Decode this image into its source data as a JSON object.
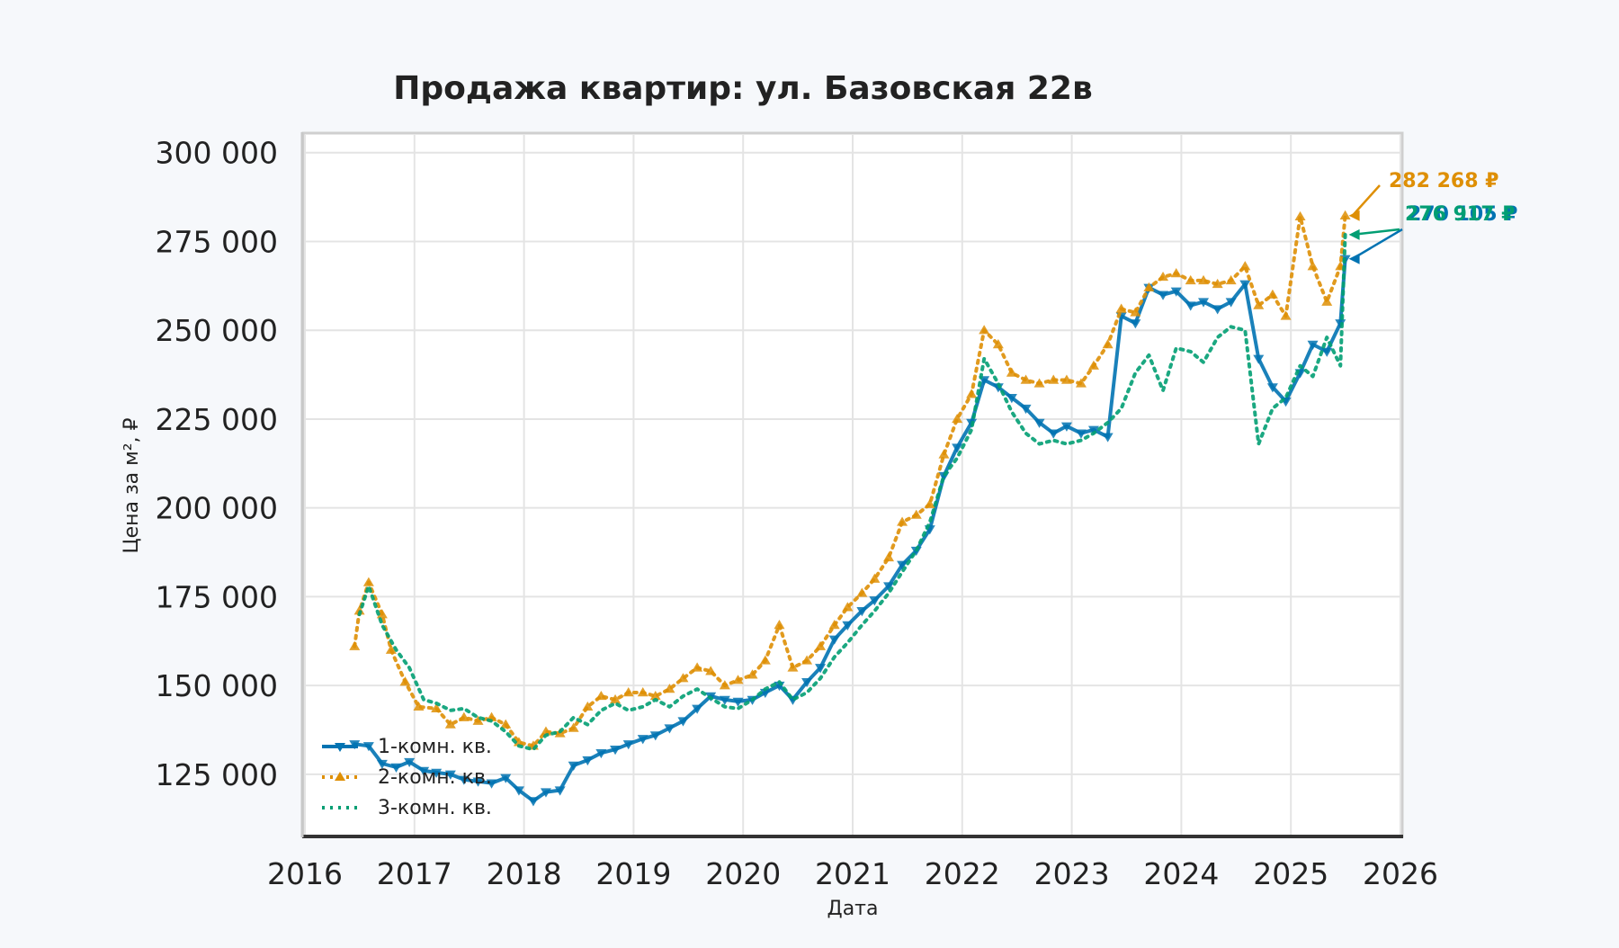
{
  "chart_data": {
    "type": "line",
    "title": "Продажа квартир: ул. Базовская 22в",
    "xlabel": "Дата",
    "ylabel": "Цена за м², ₽",
    "xlim": [
      2016,
      2026
    ],
    "ylim": [
      108000,
      305000
    ],
    "x_ticks": [
      2016,
      2017,
      2018,
      2019,
      2020,
      2021,
      2022,
      2023,
      2024,
      2025,
      2026
    ],
    "x_tick_labels": [
      "2016",
      "2017",
      "2018",
      "2019",
      "2020",
      "2021",
      "2022",
      "2023",
      "2024",
      "2025",
      "2026"
    ],
    "y_ticks": [
      125000,
      150000,
      175000,
      200000,
      225000,
      250000,
      275000,
      300000
    ],
    "y_tick_labels": [
      "125 000",
      "150 000",
      "175 000",
      "200 000",
      "225 000",
      "250 000",
      "275 000",
      "300 000"
    ],
    "grid": true,
    "legend_position": "lower-left",
    "series": [
      {
        "name": "1-комн. кв.",
        "color": "#0173b2",
        "line_style": "solid",
        "marker": "triangle-down",
        "end_label": "270 105 ₽",
        "points": [
          [
            "2016-06-15",
            133500
          ],
          [
            "2016-08-01",
            133000
          ],
          [
            "2016-09-15",
            128000
          ],
          [
            "2016-11-01",
            127000
          ],
          [
            "2016-12-15",
            128500
          ],
          [
            "2017-02-01",
            126000
          ],
          [
            "2017-03-15",
            125500
          ],
          [
            "2017-05-01",
            125000
          ],
          [
            "2017-06-15",
            123500
          ],
          [
            "2017-08-01",
            123000
          ],
          [
            "2017-09-15",
            122500
          ],
          [
            "2017-11-01",
            124000
          ],
          [
            "2017-12-15",
            120500
          ],
          [
            "2018-02-01",
            117500
          ],
          [
            "2018-03-15",
            120000
          ],
          [
            "2018-05-01",
            120500
          ],
          [
            "2018-06-15",
            127500
          ],
          [
            "2018-08-01",
            129000
          ],
          [
            "2018-09-15",
            131000
          ],
          [
            "2018-11-01",
            132000
          ],
          [
            "2018-12-15",
            133500
          ],
          [
            "2019-02-01",
            135000
          ],
          [
            "2019-03-15",
            136000
          ],
          [
            "2019-05-01",
            138000
          ],
          [
            "2019-06-15",
            140000
          ],
          [
            "2019-08-01",
            143500
          ],
          [
            "2019-09-15",
            147000
          ],
          [
            "2019-11-01",
            146000
          ],
          [
            "2019-12-15",
            145500
          ],
          [
            "2020-02-01",
            146000
          ],
          [
            "2020-03-15",
            148000
          ],
          [
            "2020-05-01",
            150000
          ],
          [
            "2020-06-15",
            146000
          ],
          [
            "2020-08-01",
            151000
          ],
          [
            "2020-09-15",
            155000
          ],
          [
            "2020-11-01",
            163000
          ],
          [
            "2020-12-15",
            167000
          ],
          [
            "2021-02-01",
            171000
          ],
          [
            "2021-03-15",
            174000
          ],
          [
            "2021-05-01",
            178000
          ],
          [
            "2021-06-15",
            184000
          ],
          [
            "2021-08-01",
            188000
          ],
          [
            "2021-09-15",
            194000
          ],
          [
            "2021-11-01",
            209000
          ],
          [
            "2021-12-15",
            217000
          ],
          [
            "2022-02-01",
            224000
          ],
          [
            "2022-03-15",
            236000
          ],
          [
            "2022-05-01",
            234000
          ],
          [
            "2022-06-15",
            231000
          ],
          [
            "2022-08-01",
            228000
          ],
          [
            "2022-09-15",
            224000
          ],
          [
            "2022-11-01",
            221000
          ],
          [
            "2022-12-15",
            223000
          ],
          [
            "2023-02-01",
            221000
          ],
          [
            "2023-03-15",
            222000
          ],
          [
            "2023-05-01",
            220000
          ],
          [
            "2023-06-15",
            254000
          ],
          [
            "2023-08-01",
            252000
          ],
          [
            "2023-09-15",
            262000
          ],
          [
            "2023-11-01",
            260000
          ],
          [
            "2023-12-15",
            261000
          ],
          [
            "2024-02-01",
            257000
          ],
          [
            "2024-03-15",
            258000
          ],
          [
            "2024-05-01",
            256000
          ],
          [
            "2024-06-15",
            258000
          ],
          [
            "2024-08-01",
            263000
          ],
          [
            "2024-09-15",
            242000
          ],
          [
            "2024-11-01",
            234000
          ],
          [
            "2024-12-15",
            230000
          ],
          [
            "2025-02-01",
            238000
          ],
          [
            "2025-03-15",
            246000
          ],
          [
            "2025-05-01",
            244000
          ],
          [
            "2025-06-15",
            252000
          ],
          [
            "2025-07-01",
            270105
          ]
        ]
      },
      {
        "name": "2-комн. кв.",
        "color": "#de8f05",
        "line_style": "dotted",
        "marker": "triangle-up",
        "end_label": "282 268 ₽",
        "points": [
          [
            "2016-06-15",
            161000
          ],
          [
            "2016-07-01",
            171000
          ],
          [
            "2016-08-01",
            179000
          ],
          [
            "2016-09-15",
            170000
          ],
          [
            "2016-10-15",
            160000
          ],
          [
            "2016-12-01",
            151000
          ],
          [
            "2017-01-15",
            144000
          ],
          [
            "2017-03-15",
            143500
          ],
          [
            "2017-05-01",
            139000
          ],
          [
            "2017-06-15",
            141000
          ],
          [
            "2017-08-01",
            140000
          ],
          [
            "2017-09-15",
            141000
          ],
          [
            "2017-11-01",
            139000
          ],
          [
            "2017-12-15",
            134000
          ],
          [
            "2018-02-01",
            133000
          ],
          [
            "2018-03-15",
            137000
          ],
          [
            "2018-05-01",
            136500
          ],
          [
            "2018-06-15",
            138000
          ],
          [
            "2018-08-01",
            144000
          ],
          [
            "2018-09-15",
            147000
          ],
          [
            "2018-11-01",
            146000
          ],
          [
            "2018-12-15",
            148000
          ],
          [
            "2019-02-01",
            148000
          ],
          [
            "2019-03-15",
            147000
          ],
          [
            "2019-05-01",
            149000
          ],
          [
            "2019-06-15",
            152000
          ],
          [
            "2019-08-01",
            155000
          ],
          [
            "2019-09-15",
            154000
          ],
          [
            "2019-11-01",
            150000
          ],
          [
            "2019-12-15",
            151500
          ],
          [
            "2020-02-01",
            153000
          ],
          [
            "2020-03-15",
            157000
          ],
          [
            "2020-05-01",
            167000
          ],
          [
            "2020-06-15",
            155000
          ],
          [
            "2020-08-01",
            157000
          ],
          [
            "2020-09-15",
            161000
          ],
          [
            "2020-11-01",
            167000
          ],
          [
            "2020-12-15",
            172000
          ],
          [
            "2021-02-01",
            176000
          ],
          [
            "2021-03-15",
            180000
          ],
          [
            "2021-05-01",
            186000
          ],
          [
            "2021-06-15",
            196000
          ],
          [
            "2021-08-01",
            198000
          ],
          [
            "2021-09-15",
            201000
          ],
          [
            "2021-11-01",
            215000
          ],
          [
            "2021-12-15",
            225000
          ],
          [
            "2022-02-01",
            232000
          ],
          [
            "2022-03-15",
            250000
          ],
          [
            "2022-05-01",
            246000
          ],
          [
            "2022-06-15",
            238000
          ],
          [
            "2022-08-01",
            236000
          ],
          [
            "2022-09-15",
            235000
          ],
          [
            "2022-11-01",
            236000
          ],
          [
            "2022-12-15",
            236000
          ],
          [
            "2023-02-01",
            235000
          ],
          [
            "2023-03-15",
            240000
          ],
          [
            "2023-05-01",
            246000
          ],
          [
            "2023-06-15",
            256000
          ],
          [
            "2023-08-01",
            255000
          ],
          [
            "2023-09-15",
            262000
          ],
          [
            "2023-11-01",
            265000
          ],
          [
            "2023-12-15",
            266000
          ],
          [
            "2024-02-01",
            264000
          ],
          [
            "2024-03-15",
            264000
          ],
          [
            "2024-05-01",
            263000
          ],
          [
            "2024-06-15",
            264000
          ],
          [
            "2024-08-01",
            268000
          ],
          [
            "2024-09-15",
            257000
          ],
          [
            "2024-11-01",
            260000
          ],
          [
            "2024-12-15",
            254000
          ],
          [
            "2025-02-01",
            282000
          ],
          [
            "2025-03-15",
            268000
          ],
          [
            "2025-05-01",
            258000
          ],
          [
            "2025-06-15",
            268000
          ],
          [
            "2025-07-01",
            282268
          ]
        ]
      },
      {
        "name": "3-комн. кв.",
        "color": "#029e73",
        "line_style": "dotted",
        "marker": "none",
        "end_label": "276 917 ₽",
        "points": [
          [
            "2016-07-01",
            170000
          ],
          [
            "2016-08-01",
            178000
          ],
          [
            "2016-09-15",
            167000
          ],
          [
            "2016-11-01",
            160000
          ],
          [
            "2016-12-15",
            155000
          ],
          [
            "2017-02-01",
            146000
          ],
          [
            "2017-03-15",
            145000
          ],
          [
            "2017-05-01",
            143000
          ],
          [
            "2017-06-15",
            143500
          ],
          [
            "2017-08-01",
            141000
          ],
          [
            "2017-09-15",
            140000
          ],
          [
            "2017-11-01",
            137000
          ],
          [
            "2017-12-15",
            133000
          ],
          [
            "2018-02-01",
            132000
          ],
          [
            "2018-03-15",
            136000
          ],
          [
            "2018-05-01",
            137000
          ],
          [
            "2018-06-15",
            141000
          ],
          [
            "2018-08-01",
            139000
          ],
          [
            "2018-09-15",
            143000
          ],
          [
            "2018-11-01",
            145000
          ],
          [
            "2018-12-15",
            143000
          ],
          [
            "2019-02-01",
            144000
          ],
          [
            "2019-03-15",
            146000
          ],
          [
            "2019-05-01",
            144000
          ],
          [
            "2019-06-15",
            147000
          ],
          [
            "2019-08-01",
            149000
          ],
          [
            "2019-09-15",
            146500
          ],
          [
            "2019-11-01",
            144000
          ],
          [
            "2019-12-15",
            143500
          ],
          [
            "2020-02-01",
            146000
          ],
          [
            "2020-03-15",
            149000
          ],
          [
            "2020-05-01",
            151000
          ],
          [
            "2020-06-15",
            146000
          ],
          [
            "2020-08-01",
            148000
          ],
          [
            "2020-09-15",
            152000
          ],
          [
            "2020-11-01",
            158000
          ],
          [
            "2020-12-15",
            162000
          ],
          [
            "2021-02-01",
            167000
          ],
          [
            "2021-03-15",
            171000
          ],
          [
            "2021-05-01",
            176000
          ],
          [
            "2021-06-15",
            182000
          ],
          [
            "2021-08-01",
            188000
          ],
          [
            "2021-09-15",
            196000
          ],
          [
            "2021-11-01",
            209000
          ],
          [
            "2021-12-15",
            214000
          ],
          [
            "2022-02-01",
            222000
          ],
          [
            "2022-03-15",
            242000
          ],
          [
            "2022-05-01",
            235000
          ],
          [
            "2022-06-15",
            227000
          ],
          [
            "2022-08-01",
            221000
          ],
          [
            "2022-09-15",
            218000
          ],
          [
            "2022-11-01",
            219000
          ],
          [
            "2022-12-15",
            218000
          ],
          [
            "2023-02-01",
            219000
          ],
          [
            "2023-03-15",
            221000
          ],
          [
            "2023-05-01",
            224000
          ],
          [
            "2023-06-15",
            228000
          ],
          [
            "2023-08-01",
            238000
          ],
          [
            "2023-09-15",
            243000
          ],
          [
            "2023-11-01",
            233000
          ],
          [
            "2023-12-15",
            245000
          ],
          [
            "2024-02-01",
            244000
          ],
          [
            "2024-03-15",
            241000
          ],
          [
            "2024-05-01",
            248000
          ],
          [
            "2024-06-15",
            251000
          ],
          [
            "2024-08-01",
            250000
          ],
          [
            "2024-09-15",
            218000
          ],
          [
            "2024-11-01",
            228000
          ],
          [
            "2024-12-15",
            231000
          ],
          [
            "2025-02-01",
            240000
          ],
          [
            "2025-03-15",
            237000
          ],
          [
            "2025-05-01",
            248000
          ],
          [
            "2025-06-15",
            240000
          ],
          [
            "2025-07-01",
            276917
          ]
        ]
      }
    ]
  }
}
